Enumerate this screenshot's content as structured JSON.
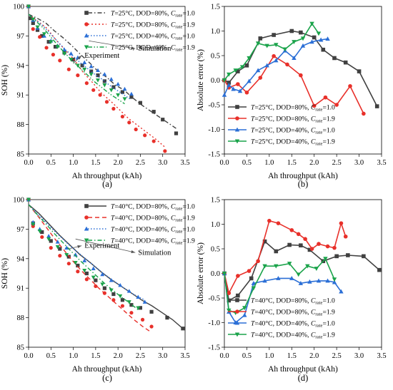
{
  "chart_data": [
    {
      "panel_label": "(a)",
      "type": "scatter",
      "xlabel": "Ah throughput (kAh)",
      "ylabel": "SOH (%)",
      "xlim": [
        0,
        3.5
      ],
      "ylim": [
        85,
        100
      ],
      "xticks": [
        "0.0",
        "0.5",
        "1.0",
        "1.5",
        "2.0",
        "2.5",
        "3.0",
        "3.5"
      ],
      "yticks": [
        "85",
        "88",
        "91",
        "94",
        "97",
        "100"
      ],
      "legend_position": "top-right",
      "annotations": [
        {
          "text": "Simulation",
          "at": [
            2.45,
            95.5
          ],
          "from": [
            1.35,
            96.5
          ]
        },
        {
          "text": "Experiment",
          "at": [
            1.25,
            94.8
          ],
          "from": [
            1.0,
            94.2
          ]
        }
      ],
      "series": [
        {
          "name": "T=25°C, DOD=80%, Crate=1.0",
          "color": "#404040",
          "marker": "square",
          "line": "dashdot",
          "x": [
            0.0,
            0.05,
            0.1,
            0.2,
            0.3,
            0.45,
            0.6,
            0.8,
            1.0,
            1.2,
            1.4,
            1.55,
            1.7,
            1.9,
            2.1,
            2.3,
            2.5,
            2.8,
            3.0,
            3.3
          ],
          "y": [
            100,
            98.8,
            98.3,
            97.6,
            97.0,
            96.4,
            95.9,
            95.3,
            94.6,
            94.0,
            93.4,
            93.0,
            92.4,
            91.8,
            91.3,
            90.8,
            90.2,
            89.3,
            88.5,
            87.1
          ],
          "sim_y": [
            99.2,
            98.8,
            98.3,
            97.5,
            96.8,
            96.0,
            95.1,
            94.3,
            93.4,
            92.8,
            92.0,
            91.5,
            90.7,
            90.0,
            89.4,
            88.8,
            88.2,
            87.6
          ]
        },
        {
          "name": "T=25°C, DOD=80%, Crate=1.9",
          "color": "#e8302a",
          "marker": "circle",
          "line": "dot",
          "x": [
            0.0,
            0.1,
            0.25,
            0.4,
            0.55,
            0.7,
            0.9,
            1.1,
            1.3,
            1.45,
            1.6,
            1.75,
            1.9,
            2.1,
            2.25,
            2.4,
            2.6,
            2.8,
            3.05
          ],
          "y": [
            100,
            97.7,
            96.9,
            95.8,
            95.1,
            94.5,
            93.6,
            93.0,
            92.2,
            91.5,
            91.0,
            90.3,
            89.6,
            88.8,
            88.2,
            87.5,
            86.9,
            86.3,
            85.3
          ],
          "sim_y": [
            99.2,
            98.5,
            97.8,
            96.6,
            95.6,
            94.6,
            93.3,
            92.3,
            91.2,
            90.4,
            89.5,
            88.6,
            87.9,
            87.2,
            86.5,
            85.7
          ]
        },
        {
          "name": "T=25°C, DOD=40%, Crate=1.0",
          "color": "#2b6fd6",
          "marker": "triangle",
          "line": "dotted",
          "x": [
            0.0,
            0.1,
            0.2,
            0.35,
            0.5,
            0.65,
            0.8,
            0.95,
            1.1,
            1.25,
            1.4,
            1.55,
            1.7,
            1.85,
            2.0,
            2.15,
            2.3
          ],
          "y": [
            100,
            98.6,
            97.8,
            97.0,
            96.5,
            96.0,
            95.6,
            95.2,
            94.8,
            94.3,
            93.9,
            93.5,
            93.1,
            92.6,
            92.1,
            91.6,
            91.1
          ],
          "sim_y": [
            99.2,
            98.6,
            98.0,
            97.2,
            96.4,
            95.6,
            95.0,
            94.3,
            93.7,
            93.1,
            92.6,
            92.0,
            91.5,
            91.0,
            90.5
          ]
        },
        {
          "name": "T=25°C, DOD=40%, Crate=1.9",
          "color": "#1aa34a",
          "marker": "down-triangle",
          "line": "dashdotdot",
          "x": [
            0.0,
            0.1,
            0.2,
            0.35,
            0.5,
            0.65,
            0.8,
            0.95,
            1.1,
            1.25,
            1.4,
            1.55,
            1.7,
            1.85,
            2.0,
            2.15
          ],
          "y": [
            100,
            98.7,
            97.9,
            97.2,
            96.4,
            95.9,
            95.2,
            94.6,
            94.0,
            93.6,
            93.1,
            92.5,
            92.0,
            91.5,
            91.0,
            90.6
          ],
          "sim_y": [
            99.2,
            98.5,
            97.8,
            96.9,
            96.0,
            95.2,
            94.4,
            93.7,
            93.0,
            92.3,
            91.7,
            91.1,
            90.6,
            90.1
          ]
        }
      ],
      "legend_labels": [
        [
          "T",
          "=25°C, DOD=80%, ",
          "C",
          "rate",
          "=1.0"
        ],
        [
          "T",
          "=25°C, DOD=80%, ",
          "C",
          "rate",
          "=1.9"
        ],
        [
          "T",
          "=25°C, DOD=40%, ",
          "C",
          "rate",
          "=1.0"
        ],
        [
          "T",
          "=25°C, DOD=40%, ",
          "C",
          "rate",
          "=1.9"
        ]
      ]
    },
    {
      "panel_label": "(b)",
      "type": "line",
      "xlabel": "Ah throughput (kAh)",
      "ylabel": "Absolute error (%)",
      "xlim": [
        0,
        3.5
      ],
      "ylim": [
        -1.5,
        1.5
      ],
      "xticks": [
        "0.0",
        "0.5",
        "1.0",
        "1.5",
        "2.0",
        "2.5",
        "3.0",
        "3.5"
      ],
      "yticks": [
        "-1.5",
        "-1.0",
        "-0.5",
        "0.0",
        "0.5",
        "1.0",
        "1.5"
      ],
      "legend_position": "bottom-left",
      "series": [
        {
          "name": "T=25°C, DOD=80%, Crate=1.0",
          "color": "#404040",
          "marker": "square",
          "x": [
            0.0,
            0.1,
            0.3,
            0.5,
            0.8,
            1.1,
            1.5,
            1.7,
            2.0,
            2.2,
            2.45,
            2.7,
            3.0,
            3.4
          ],
          "y": [
            0.0,
            -0.05,
            0.18,
            0.3,
            0.85,
            0.92,
            1.0,
            0.97,
            0.87,
            0.62,
            0.45,
            0.36,
            0.18,
            -0.53
          ]
        },
        {
          "name": "T=25°C, DOD=80%, Crate=1.9",
          "color": "#e8302a",
          "marker": "circle",
          "x": [
            0.0,
            0.1,
            0.3,
            0.5,
            0.8,
            1.1,
            1.4,
            1.7,
            2.0,
            2.25,
            2.5,
            2.8,
            3.1
          ],
          "y": [
            0.0,
            -0.15,
            -0.08,
            -0.25,
            0.05,
            0.49,
            0.32,
            0.1,
            -0.52,
            -0.35,
            -0.5,
            -0.12,
            -0.68
          ]
        },
        {
          "name": "T=25°C, DOD=40%, Crate=1.0",
          "color": "#2b6fd6",
          "marker": "triangle",
          "x": [
            0.0,
            0.1,
            0.2,
            0.35,
            0.55,
            0.75,
            0.95,
            1.15,
            1.35,
            1.55,
            1.75,
            1.95,
            2.15,
            2.3
          ],
          "y": [
            -0.3,
            -0.1,
            -0.18,
            -0.22,
            -0.02,
            0.2,
            0.3,
            0.4,
            0.6,
            0.45,
            0.7,
            0.78,
            0.82,
            0.84
          ]
        },
        {
          "name": "T=25°C, DOD=40%, Crate=1.9",
          "color": "#1aa34a",
          "marker": "down-triangle",
          "x": [
            0.0,
            0.1,
            0.25,
            0.4,
            0.55,
            0.75,
            0.95,
            1.15,
            1.35,
            1.55,
            1.75,
            1.95,
            2.1
          ],
          "y": [
            0.0,
            0.12,
            0.2,
            0.27,
            0.45,
            0.75,
            0.7,
            0.72,
            0.63,
            0.78,
            0.85,
            1.15,
            0.95
          ]
        }
      ],
      "legend_labels": [
        [
          "T",
          "=25°C, DOD=80%, ",
          "C",
          "rate",
          "=1.0"
        ],
        [
          "T",
          "=25°C, DOD=80%, ",
          "C",
          "rate",
          "=1.9"
        ],
        [
          "T",
          "=25°C, DOD=40%, ",
          "C",
          "rate",
          "=1.0"
        ],
        [
          "T",
          "=25°C, DOD=40%, ",
          "C",
          "rate",
          "=1.9"
        ]
      ]
    },
    {
      "panel_label": "(c)",
      "type": "scatter",
      "xlabel": "Ah throughput (kAh)",
      "ylabel": "SOH (%)",
      "xlim": [
        0,
        3.5
      ],
      "ylim": [
        85,
        100
      ],
      "xticks": [
        "0.0",
        "0.5",
        "1.0",
        "1.5",
        "2.0",
        "2.5",
        "3.0",
        "3.5"
      ],
      "yticks": [
        "85",
        "88",
        "91",
        "94",
        "97",
        "100"
      ],
      "legend_position": "top-right",
      "annotations": [
        {
          "text": "Simulation",
          "at": [
            2.45,
            94.4
          ],
          "from": [
            1.05,
            96.0
          ]
        },
        {
          "text": "Experiment",
          "at": [
            1.25,
            95.1
          ],
          "from": [
            0.9,
            95.0
          ]
        }
      ],
      "series": [
        {
          "name": "T=40°C, DOD=80%, Crate=1.0",
          "color": "#404040",
          "marker": "square",
          "line": "solid",
          "x": [
            0.0,
            0.1,
            0.3,
            0.5,
            0.7,
            0.9,
            1.1,
            1.3,
            1.5,
            1.7,
            1.9,
            2.1,
            2.3,
            2.5,
            2.75,
            3.1,
            3.45
          ],
          "y": [
            100,
            97.6,
            96.7,
            95.8,
            95.0,
            94.2,
            93.3,
            92.5,
            91.8,
            91.0,
            90.4,
            89.8,
            89.3,
            89.0,
            88.6,
            88.0,
            86.9
          ],
          "sim_y": [
            99.5,
            98.6,
            97.5,
            96.4,
            95.4,
            94.4,
            93.6,
            92.7,
            91.9,
            91.2,
            90.5,
            89.8,
            89.2,
            88.5,
            87.8,
            86.9
          ]
        },
        {
          "name": "T=40°C, DOD=80%, Crate=1.9",
          "color": "#e8302a",
          "marker": "circle",
          "line": "dash",
          "x": [
            0.0,
            0.1,
            0.3,
            0.5,
            0.7,
            0.9,
            1.1,
            1.3,
            1.5,
            1.7,
            1.9,
            2.1,
            2.3,
            2.55,
            2.75
          ],
          "y": [
            100,
            97.3,
            96.2,
            95.1,
            94.3,
            93.5,
            92.7,
            91.9,
            91.2,
            90.5,
            89.8,
            89.2,
            88.5,
            87.8,
            87.1
          ],
          "sim_y": [
            99.5,
            98.4,
            97.2,
            96.0,
            94.9,
            93.8,
            92.8,
            91.9,
            91.0,
            90.2,
            89.4,
            88.6,
            87.8,
            87.1,
            86.5
          ]
        },
        {
          "name": "T=40°C, DOD=40%, Crate=1.0",
          "color": "#2b6fd6",
          "marker": "triangle",
          "line": "dotted",
          "x": [
            0.0,
            0.1,
            0.25,
            0.45,
            0.65,
            0.85,
            1.05,
            1.25,
            1.45,
            1.65,
            1.85,
            2.05,
            2.25,
            2.45,
            2.6
          ],
          "y": [
            100,
            97.7,
            97.0,
            96.3,
            95.7,
            95.1,
            94.4,
            93.8,
            93.0,
            92.4,
            91.8,
            91.3,
            90.7,
            90.1,
            89.6
          ],
          "sim_y": [
            99.5,
            98.6,
            97.8,
            96.9,
            96.1,
            95.3,
            94.6,
            93.9,
            93.2,
            92.5,
            91.9,
            91.3,
            90.7,
            90.2,
            89.8
          ]
        },
        {
          "name": "T=40°C, DOD=40%, Crate=1.9",
          "color": "#1aa34a",
          "marker": "down-triangle",
          "line": "dashdot",
          "x": [
            0.0,
            0.1,
            0.25,
            0.45,
            0.65,
            0.85,
            1.05,
            1.25,
            1.45,
            1.65,
            1.85,
            2.05,
            2.25,
            2.45
          ],
          "y": [
            100,
            97.5,
            96.8,
            96.0,
            95.2,
            94.4,
            93.6,
            92.8,
            92.1,
            91.4,
            90.8,
            90.2,
            89.6,
            89.0
          ],
          "sim_y": [
            99.5,
            98.5,
            97.6,
            96.6,
            95.7,
            94.8,
            93.9,
            93.1,
            92.3,
            91.5,
            90.8,
            90.1,
            89.5,
            88.8
          ]
        }
      ],
      "legend_labels": [
        [
          "T",
          "=40°C, DOD=80%, ",
          "C",
          "rate",
          "=1.0"
        ],
        [
          "T",
          "=40°C, DOD=80%, ",
          "C",
          "rate",
          "=1.9"
        ],
        [
          "T",
          "=40°C, DOD=40%, ",
          "C",
          "rate",
          "=1.0"
        ],
        [
          "T",
          "=40°C, DOD=40%, ",
          "C",
          "rate",
          "=1.9"
        ]
      ]
    },
    {
      "panel_label": "(d)",
      "type": "line",
      "xlabel": "Ah throughput (kAh)",
      "ylabel": "Absolute error (%)",
      "xlim": [
        0,
        3.5
      ],
      "ylim": [
        -1.5,
        1.5
      ],
      "xticks": [
        "0.0",
        "0.5",
        "1.0",
        "1.5",
        "2.0",
        "2.5",
        "3.0",
        "3.5"
      ],
      "yticks": [
        "-1.5",
        "-1.0",
        "-0.5",
        "0.0",
        "0.5",
        "1.0",
        "1.5"
      ],
      "legend_position": "bottom-right",
      "series": [
        {
          "name": "T=40°C, DOD=80%, Crate=1.0",
          "color": "#404040",
          "marker": "square",
          "x": [
            0.0,
            0.1,
            0.3,
            0.6,
            0.9,
            1.15,
            1.45,
            1.7,
            1.9,
            2.2,
            2.5,
            2.75,
            3.1,
            3.45
          ],
          "y": [
            0.0,
            -0.55,
            -0.45,
            -0.1,
            0.65,
            0.45,
            0.58,
            0.57,
            0.48,
            0.25,
            0.35,
            0.37,
            0.35,
            0.07
          ]
        },
        {
          "name": "T=40°C, DOD=80%, Crate=1.9",
          "color": "#e8302a",
          "marker": "circle",
          "x": [
            0.0,
            0.1,
            0.3,
            0.55,
            0.75,
            1.0,
            1.2,
            1.5,
            1.65,
            1.8,
            1.95,
            2.1,
            2.3,
            2.45,
            2.6,
            2.7
          ],
          "y": [
            0.0,
            -0.4,
            -0.05,
            0.05,
            0.25,
            1.07,
            1.02,
            0.88,
            0.8,
            0.7,
            0.5,
            0.6,
            0.55,
            0.52,
            1.02,
            0.75
          ]
        },
        {
          "name": "T=40°C, DOD=40%, Crate=1.0",
          "color": "#2b6fd6",
          "marker": "triangle",
          "x": [
            0.0,
            0.1,
            0.25,
            0.45,
            0.65,
            0.9,
            1.2,
            1.5,
            1.7,
            1.9,
            2.1,
            2.3,
            2.45,
            2.6
          ],
          "y": [
            0.0,
            -0.78,
            -1.0,
            -0.85,
            -0.2,
            -0.15,
            -0.1,
            -0.1,
            -0.2,
            -0.17,
            -0.15,
            -0.15,
            -0.18,
            -0.37
          ]
        },
        {
          "name": "T=40°C, DOD=40%, Crate=1.9",
          "color": "#1aa34a",
          "marker": "down-triangle",
          "x": [
            0.0,
            0.1,
            0.25,
            0.45,
            0.65,
            0.9,
            1.15,
            1.45,
            1.65,
            1.85,
            2.05,
            2.25,
            2.45
          ],
          "y": [
            0.0,
            -0.75,
            -0.8,
            -0.7,
            -0.3,
            0.15,
            0.15,
            0.2,
            -0.02,
            0.15,
            0.1,
            0.3,
            -0.12
          ]
        }
      ],
      "legend_labels": [
        [
          "T",
          "=40°C, DOD=80%, ",
          "C",
          "rate",
          "=1.0"
        ],
        [
          "T",
          "=40°C, DOD=80%, ",
          "C",
          "rate",
          "=1.9"
        ],
        [
          "T",
          "=40°C, DOD=40%, ",
          "C",
          "rate",
          "=1.0"
        ],
        [
          "T",
          "=40°C, DOD=40%, ",
          "C",
          "rate",
          "=1.9"
        ]
      ]
    }
  ]
}
